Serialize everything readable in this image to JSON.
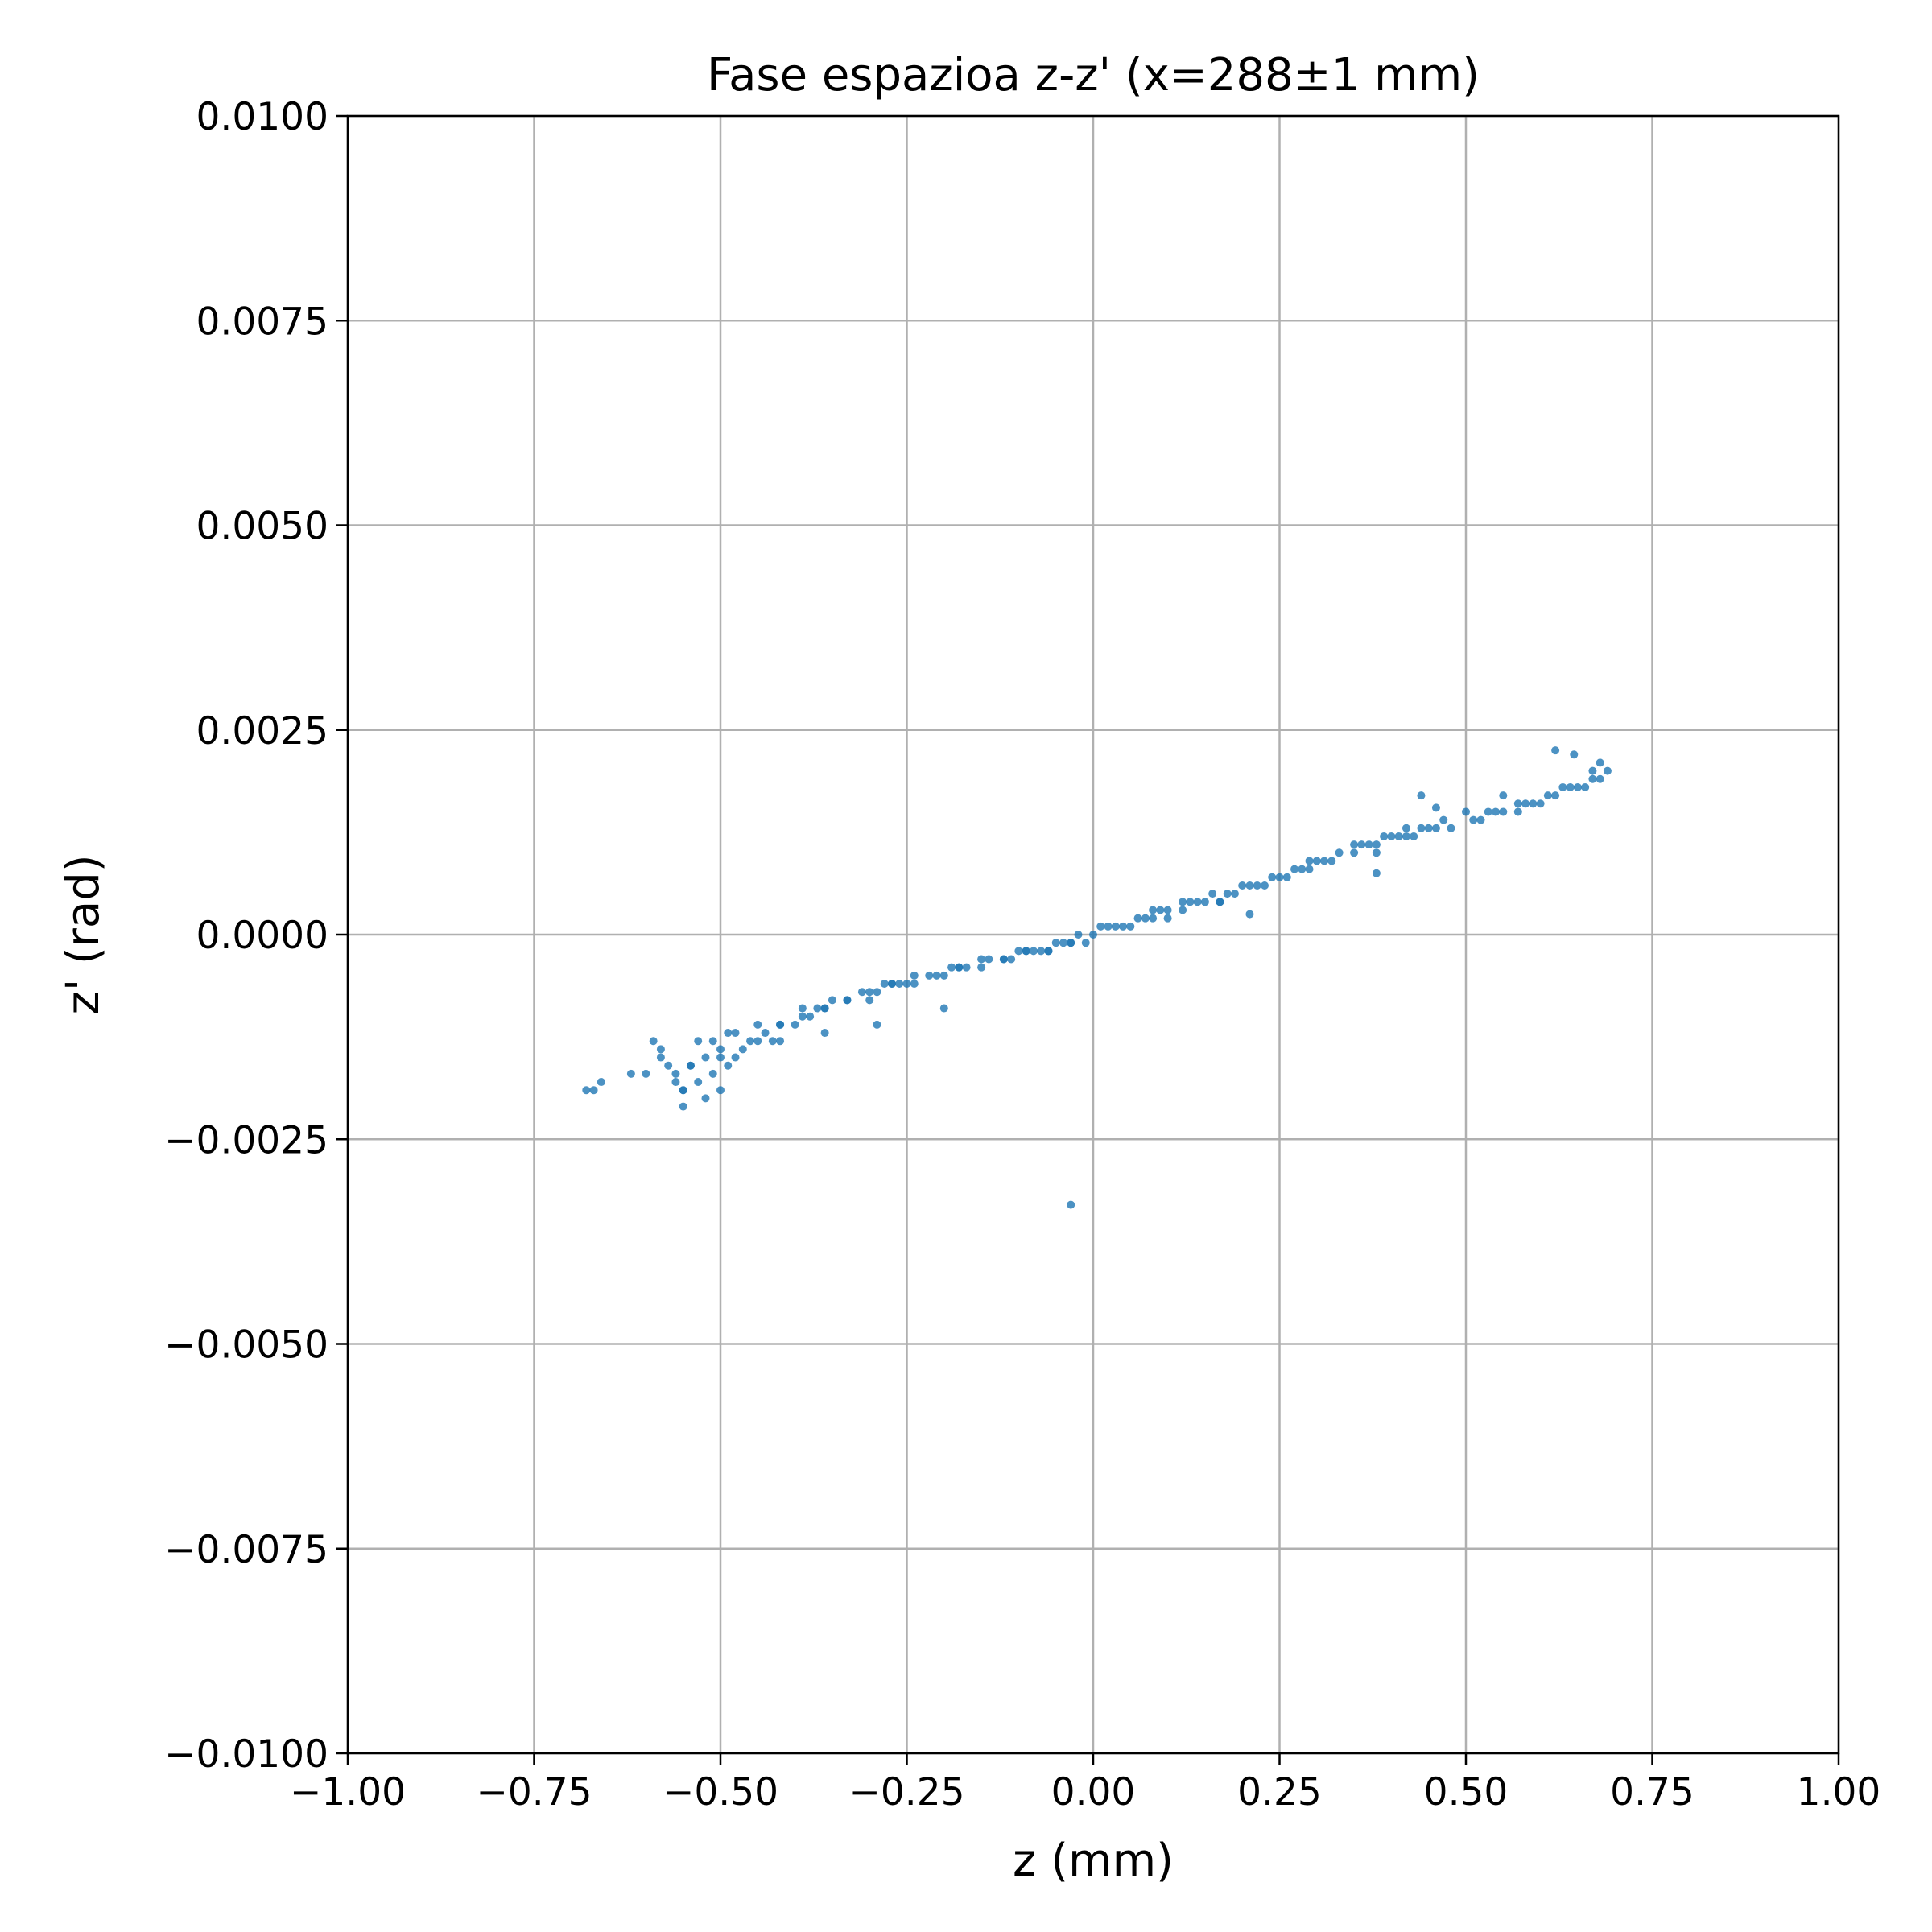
{
  "chart_data": {
    "type": "scatter",
    "title": "Fase espazioa z-z' (x=288±1 mm)",
    "xlabel": "z (mm)",
    "ylabel": "z' (rad)",
    "xlim": [
      -1.0,
      1.0
    ],
    "ylim": [
      -0.01,
      0.01
    ],
    "xticks": [
      -1.0,
      -0.75,
      -0.5,
      -0.25,
      0.0,
      0.25,
      0.5,
      0.75,
      1.0
    ],
    "xtick_labels": [
      "−1.00",
      "−0.75",
      "−0.50",
      "−0.25",
      "0.00",
      "0.25",
      "0.50",
      "0.75",
      "1.00"
    ],
    "yticks": [
      -0.01,
      -0.0075,
      -0.005,
      -0.0025,
      0.0,
      0.0025,
      0.005,
      0.0075,
      0.01
    ],
    "ytick_labels": [
      "−0.0100",
      "−0.0075",
      "−0.0050",
      "−0.0025",
      "0.0000",
      "0.0025",
      "0.0050",
      "0.0075",
      "0.0100"
    ],
    "grid": true,
    "marker_color": "#1f77b4",
    "grid_color": "#b0b0b0",
    "points": {
      "x": [
        -0.68,
        -0.67,
        -0.66,
        -0.62,
        -0.6,
        -0.59,
        -0.58,
        -0.57,
        -0.56,
        -0.55,
        -0.55,
        -0.54,
        -0.53,
        -0.52,
        -0.52,
        -0.51,
        -0.5,
        -0.49,
        -0.49,
        -0.48,
        -0.47,
        -0.46,
        -0.45,
        -0.44,
        -0.43,
        -0.42,
        -0.4,
        -0.39,
        -0.38,
        -0.37,
        -0.36,
        -0.35,
        -0.33,
        -0.31,
        -0.3,
        -0.29,
        -0.28,
        -0.27,
        -0.26,
        -0.25,
        -0.24,
        -0.22,
        -0.2,
        -0.19,
        -0.18,
        -0.17,
        -0.15,
        -0.14,
        -0.12,
        -0.11,
        -0.1,
        -0.08,
        -0.07,
        -0.06,
        -0.05,
        -0.04,
        -0.03,
        -0.02,
        -0.01,
        0.0,
        0.02,
        0.03,
        0.05,
        0.06,
        0.08,
        0.09,
        0.1,
        0.12,
        0.14,
        0.15,
        0.17,
        0.18,
        0.2,
        0.21,
        0.22,
        0.24,
        0.25,
        0.27,
        0.28,
        0.3,
        0.31,
        0.33,
        0.35,
        0.36,
        0.38,
        0.39,
        0.4,
        0.42,
        0.44,
        0.45,
        0.46,
        0.48,
        0.5,
        0.52,
        0.53,
        0.55,
        0.57,
        0.59,
        0.6,
        0.62,
        0.63,
        0.65,
        0.66,
        0.67,
        0.68,
        0.69,
        -0.58,
        -0.56,
        -0.54,
        -0.51,
        -0.5,
        -0.48,
        -0.45,
        -0.42,
        -0.39,
        -0.36,
        -0.33,
        -0.3,
        -0.27,
        -0.24,
        -0.21,
        -0.18,
        -0.15,
        -0.12,
        -0.09,
        -0.06,
        -0.03,
        0.01,
        0.04,
        0.07,
        0.1,
        0.13,
        0.16,
        0.19,
        0.23,
        0.26,
        0.29,
        0.32,
        0.35,
        0.38,
        0.41,
        0.43,
        0.47,
        0.51,
        0.54,
        0.58,
        0.61,
        0.64,
        0.67,
        -0.03,
        0.21,
        0.38,
        0.44,
        0.46,
        0.62,
        0.645,
        0.68,
        -0.2,
        -0.29,
        -0.36,
        -0.42,
        -0.55,
        -0.53,
        -0.5,
        0.17,
        0.55,
        0.37,
        0.08,
        -0.09,
        0.12,
        0.29,
        0.42,
        0.57
      ],
      "y": [
        -0.0019,
        -0.0019,
        -0.0018,
        -0.0017,
        -0.0017,
        -0.0013,
        -0.0015,
        -0.0016,
        -0.0017,
        -0.0021,
        -0.0019,
        -0.0016,
        -0.0013,
        -0.0015,
        -0.002,
        -0.0017,
        -0.0014,
        -0.0012,
        -0.0016,
        -0.0012,
        -0.0014,
        -0.0013,
        -0.0011,
        -0.0012,
        -0.0013,
        -0.0011,
        -0.0011,
        -0.0009,
        -0.001,
        -0.0009,
        -0.0009,
        -0.0008,
        -0.0008,
        -0.0007,
        -0.0008,
        -0.0007,
        -0.0006,
        -0.0006,
        -0.0006,
        -0.0006,
        -0.0005,
        -0.0005,
        -0.0005,
        -0.0004,
        -0.0004,
        -0.0004,
        -0.0004,
        -0.0003,
        -0.0003,
        -0.0003,
        -0.0002,
        -0.0002,
        -0.0002,
        -0.0002,
        -0.0001,
        -0.0001,
        -0.0001,
        0.0,
        -0.0001,
        0.0,
        0.0001,
        0.0001,
        0.0001,
        0.0002,
        0.0002,
        0.0003,
        0.0002,
        0.0003,
        0.0004,
        0.0004,
        0.0004,
        0.0005,
        0.0006,
        0.0006,
        0.0006,
        0.0007,
        0.0007,
        0.0008,
        0.0008,
        0.0009,
        0.0009,
        0.001,
        0.0011,
        0.0011,
        0.0011,
        0.0012,
        0.0012,
        0.0012,
        0.0013,
        0.0013,
        0.0013,
        0.0013,
        0.0015,
        0.0014,
        0.0015,
        0.0015,
        0.0015,
        0.0016,
        0.0016,
        0.0017,
        0.0018,
        0.0018,
        0.0018,
        0.0019,
        0.0019,
        0.002,
        -0.0014,
        -0.0018,
        -0.0016,
        -0.0013,
        -0.0019,
        -0.0015,
        -0.0013,
        -0.0011,
        -0.001,
        -0.0009,
        -0.0008,
        -0.0007,
        -0.0006,
        -0.0006,
        -0.0005,
        -0.0004,
        -0.0003,
        -0.0003,
        -0.0002,
        -0.0002,
        -0.0001,
        0.0001,
        0.0001,
        0.0002,
        0.0003,
        0.0004,
        0.0005,
        0.0005,
        0.0006,
        0.0007,
        0.0008,
        0.0009,
        0.001,
        0.001,
        0.0012,
        0.0012,
        0.0014,
        0.0014,
        0.0015,
        0.0016,
        0.0017,
        0.0018,
        0.002,
        -0.0033,
        0.00025,
        0.00075,
        0.0017,
        0.00155,
        0.00225,
        0.0022,
        0.0021,
        -0.0009,
        -0.0011,
        -0.0012,
        -0.0013,
        -0.0019,
        -0.0018,
        -0.0015,
        0.0004,
        0.0017,
        0.0011,
        0.0003,
        -0.0002,
        0.0004,
        0.0009,
        0.0013,
        0.0016
      ]
    }
  }
}
